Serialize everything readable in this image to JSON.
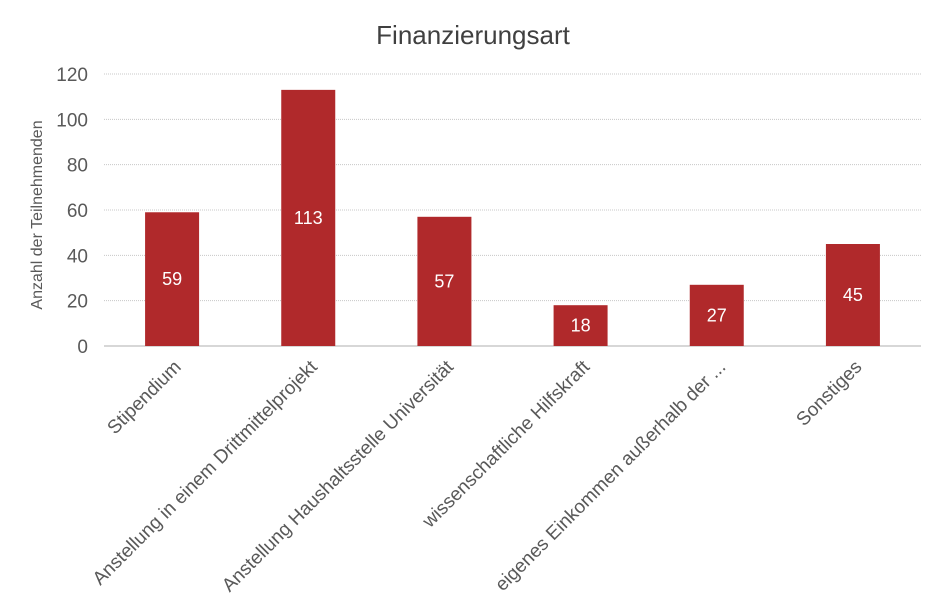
{
  "chart_data": {
    "type": "bar",
    "title": "Finanzierungsart",
    "xlabel": "",
    "ylabel": "Anzahl der Teilnehmenden",
    "categories": [
      "Stipendium",
      "Anstellung in einem Drittmittelprojekt",
      "Anstellung Haushaltsstelle Universität",
      "wissenschaftliche Hilfskraft",
      "eigenes Einkommen außerhalb der ...",
      "Sonstiges"
    ],
    "values": [
      59,
      113,
      57,
      18,
      27,
      45
    ],
    "ylim": [
      0,
      120
    ],
    "yticks": [
      0,
      20,
      40,
      60,
      80,
      100,
      120
    ],
    "grid": true,
    "legend": "none",
    "bar_color": "#b0292b"
  }
}
